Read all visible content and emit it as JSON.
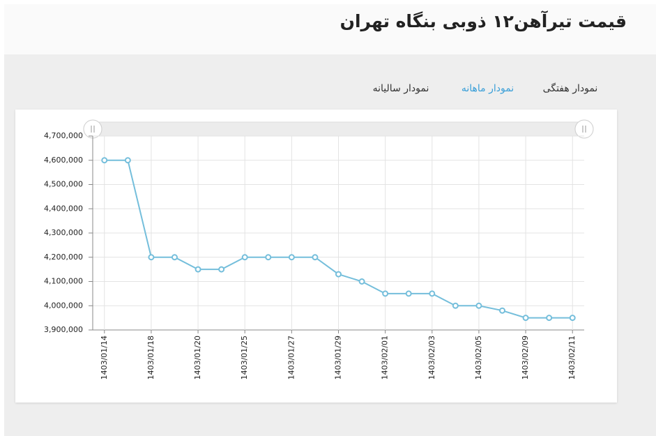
{
  "header": {
    "title": "قیمت تیرآهن۱۲ ذوبی بنگاه تهران"
  },
  "tabs": {
    "items": [
      "نمودار هفتگی",
      "نمودار ماهانه",
      "نمودار سالیانه"
    ],
    "active": 1
  },
  "chart_data": {
    "type": "line",
    "categories": [
      "1403/01/14",
      null,
      "1403/01/18",
      null,
      "1403/01/20",
      null,
      "1403/01/25",
      null,
      "1403/01/27",
      null,
      "1403/01/29",
      null,
      "1403/02/01",
      null,
      "1403/02/03",
      null,
      "1403/02/05",
      null,
      "1403/02/09",
      null,
      "1403/02/11"
    ],
    "values": [
      4600000,
      4600000,
      4200000,
      4200000,
      4150000,
      4150000,
      4200000,
      4200000,
      4200000,
      4200000,
      4130000,
      4100000,
      4050000,
      4050000,
      4050000,
      4000000,
      4000000,
      3980000,
      3950000,
      3950000,
      3950000
    ],
    "color": "#74bedb",
    "ylim": [
      3900000,
      4700000
    ],
    "yticks": [
      {
        "value": 3900000,
        "label": "3,900,000"
      },
      {
        "value": 4000000,
        "label": "4,000,000"
      },
      {
        "value": 4100000,
        "label": "4,100,000"
      },
      {
        "value": 4200000,
        "label": "4,200,000"
      },
      {
        "value": 4300000,
        "label": "4,300,000"
      },
      {
        "value": 4400000,
        "label": "4,400,000"
      },
      {
        "value": 4500000,
        "label": "4,500,000"
      },
      {
        "value": 4600000,
        "label": "4,600,000"
      },
      {
        "value": 4700000,
        "label": "4,700,000"
      }
    ],
    "grid": true
  }
}
